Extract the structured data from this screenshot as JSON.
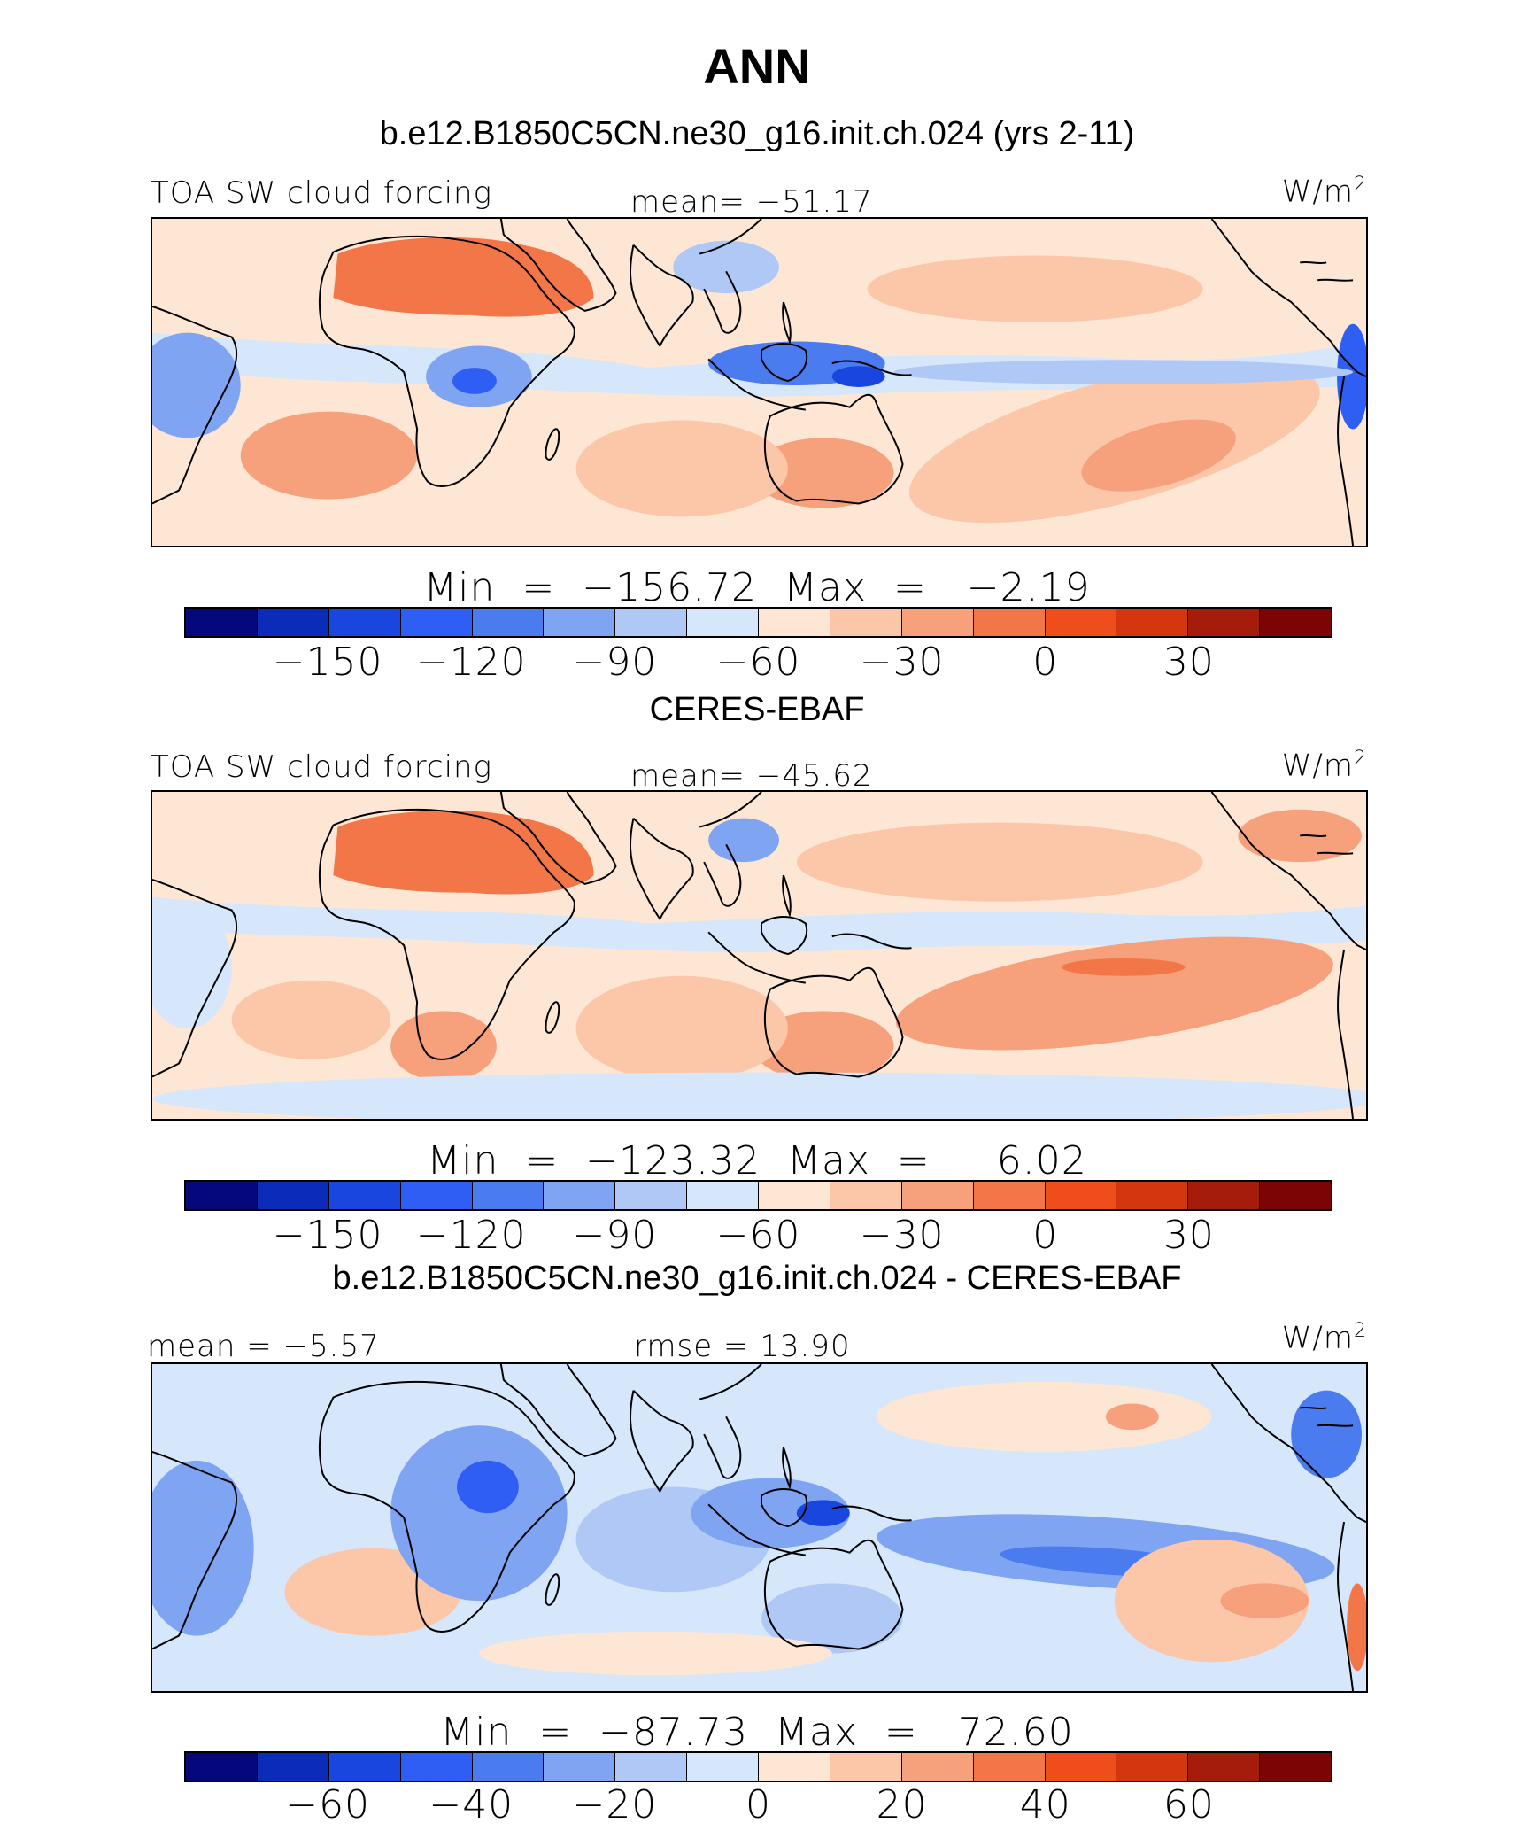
{
  "figure": {
    "title": "ANN"
  },
  "panels": [
    {
      "title": "b.e12.B1850C5CN.ne30_g16.init.ch.024 (yrs 2-11)",
      "left_label": "TOA SW cloud forcing",
      "center_label": "mean= −51.17",
      "units_base": "W/m",
      "units_exp": "2",
      "min_max": "Min  =  −156.72  Max  =   −2.19",
      "colorbar": {
        "ticks": [
          "−150",
          "−120",
          "−90",
          "−60",
          "−30",
          "0",
          "30"
        ],
        "levels": [
          -165,
          -150,
          -135,
          -120,
          -105,
          -90,
          -75,
          -60,
          -45,
          -30,
          -15,
          0,
          15,
          30,
          45
        ]
      }
    },
    {
      "title": "CERES-EBAF",
      "left_label": "TOA SW cloud forcing",
      "center_label": "mean= −45.62",
      "units_base": "W/m",
      "units_exp": "2",
      "min_max": "Min  =  −123.32  Max  =     6.02",
      "colorbar": {
        "ticks": [
          "−150",
          "−120",
          "−90",
          "−60",
          "−30",
          "0",
          "30"
        ],
        "levels": [
          -165,
          -150,
          -135,
          -120,
          -105,
          -90,
          -75,
          -60,
          -45,
          -30,
          -15,
          0,
          15,
          30,
          45
        ]
      }
    },
    {
      "title": "b.e12.B1850C5CN.ne30_g16.init.ch.024 - CERES-EBAF",
      "left_label": "mean  =   −5.57",
      "center_label": "rmse  =   13.90",
      "units_base": "W/m",
      "units_exp": "2",
      "min_max": "Min  =  −87.73  Max  =   72.60",
      "colorbar": {
        "ticks": [
          "−60",
          "−40",
          "−20",
          "0",
          "20",
          "40",
          "60"
        ],
        "levels": [
          -70,
          -60,
          -50,
          -40,
          -30,
          -20,
          -10,
          0,
          10,
          20,
          30,
          40,
          50,
          60,
          70
        ]
      }
    }
  ],
  "palette": [
    "#04087a",
    "#0a2cb8",
    "#1a46e0",
    "#2f5ef5",
    "#4a7cf0",
    "#7fa4f2",
    "#b0c8f6",
    "#d6e6fb",
    "#fde6d4",
    "#fbc7a8",
    "#f7a07c",
    "#f37648",
    "#f04d1c",
    "#d4360f",
    "#a61c0a",
    "#7d0404"
  ],
  "map_colors": {
    "frame": "#000000",
    "coastline": "#000000"
  }
}
